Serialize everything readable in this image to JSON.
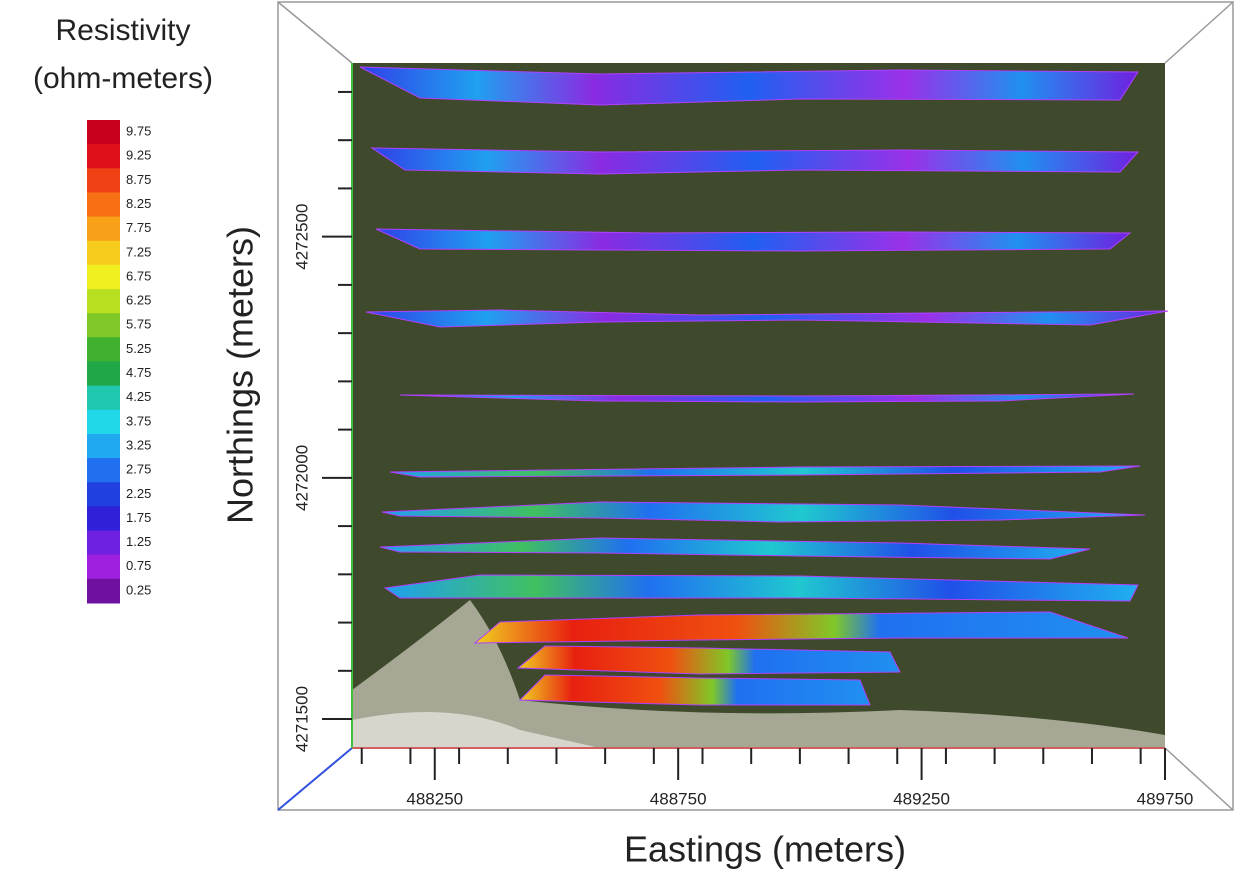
{
  "chart_data": {
    "type": "resistivity-map",
    "colorbar": {
      "title": [
        "Resistivity",
        "(ohm-meters)"
      ],
      "ticks": [
        9.75,
        9.25,
        8.75,
        8.25,
        7.75,
        7.25,
        6.75,
        6.25,
        5.75,
        5.25,
        4.75,
        4.25,
        3.75,
        3.25,
        2.75,
        2.25,
        1.75,
        1.25,
        0.75,
        0.25
      ],
      "colors": [
        "#c8001e",
        "#e0101a",
        "#f04016",
        "#f87014",
        "#f8a018",
        "#f8cc1c",
        "#f0f020",
        "#b8e020",
        "#80c828",
        "#40b030",
        "#20a848",
        "#20c8b0",
        "#20d8e8",
        "#20a8f0",
        "#2070f0",
        "#2040e0",
        "#3020d8",
        "#7020e0",
        "#a020e0",
        "#7010a0"
      ]
    },
    "xlabel": "Eastings (meters)",
    "ylabel": "Northings (meters)",
    "xlim": [
      488080,
      489750
    ],
    "ylim": [
      4271440,
      4272860
    ],
    "xticks": [
      488250,
      488750,
      489250,
      489750
    ],
    "yticks": [
      4271500,
      4272000,
      4272500
    ],
    "xminor_ticks": [
      488100,
      488200,
      488300,
      488400,
      488500,
      488600,
      488700,
      488800,
      488900,
      489000,
      489100,
      489200,
      489300,
      489400,
      489500,
      489600,
      489700
    ],
    "yminor_ticks": [
      4271600,
      4271700,
      4271800,
      4271900,
      4272100,
      4272200,
      4272300,
      4272400,
      4272600,
      4272700,
      4272800
    ]
  }
}
